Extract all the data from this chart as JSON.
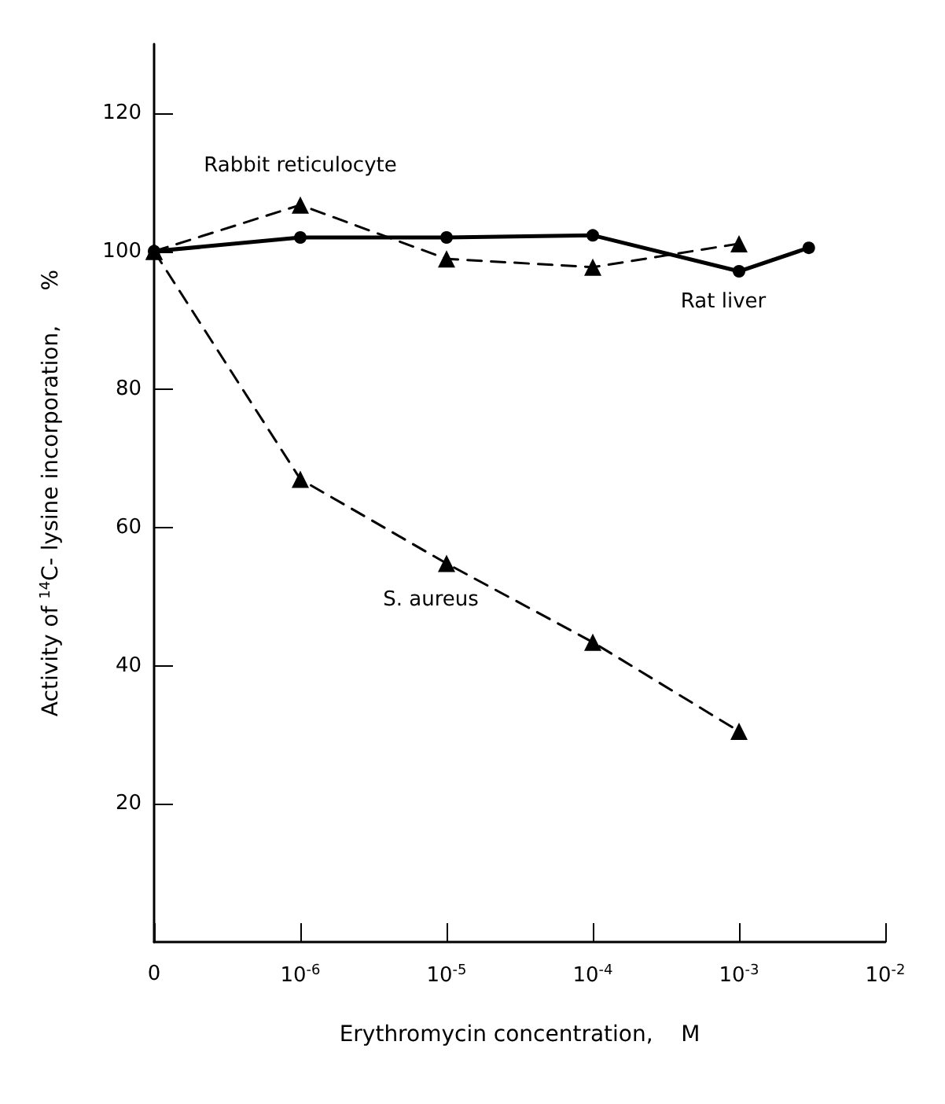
{
  "chart_data": {
    "type": "line",
    "xlabel": "Erythromycin concentration,    M",
    "ylabel": "Activity of $^{14}$C- lysine incorporation,     %",
    "x": [
      1e-07,
      1e-06,
      1e-05,
      0.0001,
      0.001
    ],
    "log": "x",
    "series": [
      {
        "name": "Rat liver",
        "color": "#000000",
        "x": [
          1e-07,
          1e-06,
          1e-05,
          0.0001,
          0.001,
          0.003
        ],
        "values": [
          100,
          102,
          102,
          102.3,
          97.1,
          100.5
        ],
        "marker": "circle",
        "line_style": "solid"
      },
      {
        "name": "Rabbit reticulocyte",
        "color": "#000000",
        "values": [
          100,
          106.7,
          98.9,
          97.7,
          101.1
        ],
        "marker": "triangle",
        "line_style": "dashed"
      },
      {
        "name": "S. aureus",
        "color": "#000000",
        "values": [
          100,
          67,
          54.8,
          43.4,
          30.5
        ],
        "marker": "triangle",
        "line_style": "dashed"
      }
    ],
    "xlim": [
      1e-07,
      0.01
    ],
    "xticks": [
      {
        "value": 1e-07,
        "label": "0"
      },
      {
        "value": 1e-06,
        "label": "10$^{-6}$"
      },
      {
        "value": 1e-05,
        "label": "10$^{-5}$"
      },
      {
        "value": 0.0001,
        "label": "10$^{-4}$"
      },
      {
        "value": 0.001,
        "label": "10$^{-3}$"
      },
      {
        "value": 0.01,
        "label": "10$^{-2}$"
      }
    ],
    "ylim": [
      0,
      130
    ],
    "yticks": [
      20,
      40,
      60,
      80,
      100,
      120
    ],
    "grid": false,
    "legend": false
  }
}
